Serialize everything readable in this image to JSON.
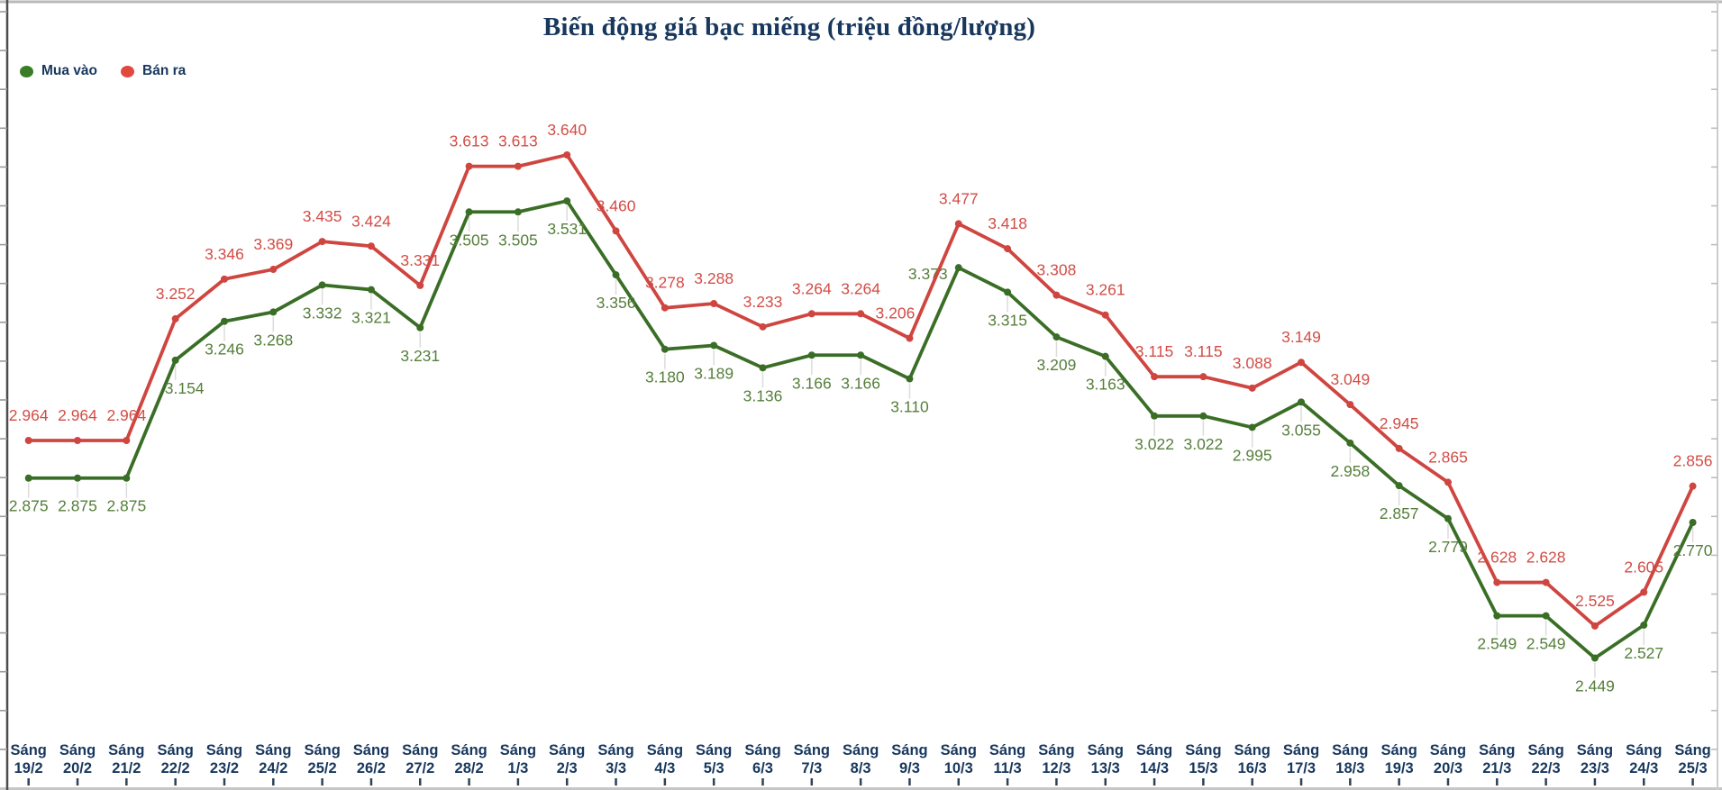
{
  "title": "Biến động giá bạc miếng (triệu đồng/lượng)",
  "legend": [
    {
      "label": "Mua vào",
      "color": "#3a7d28"
    },
    {
      "label": "Bán ra",
      "color": "#e2483e"
    }
  ],
  "chart_data": {
    "type": "line",
    "x_prefix": "Sáng",
    "categories": [
      "19/2",
      "20/2",
      "21/2",
      "22/2",
      "23/2",
      "24/2",
      "25/2",
      "26/2",
      "27/2",
      "28/2",
      "1/3",
      "2/3",
      "3/3",
      "4/3",
      "5/3",
      "6/3",
      "7/3",
      "8/3",
      "9/3",
      "10/3",
      "11/3",
      "12/3",
      "13/3",
      "14/3",
      "15/3",
      "16/3",
      "17/3",
      "18/3",
      "19/3",
      "20/3",
      "21/3",
      "22/3",
      "23/3",
      "24/3",
      "25/3"
    ],
    "series": [
      {
        "name": "Mua vào",
        "role": "buy",
        "color": "#3a6e26",
        "label_color": "#557f3a",
        "values": [
          2.875,
          2.875,
          2.875,
          3.154,
          3.246,
          3.268,
          3.332,
          3.321,
          3.231,
          3.505,
          3.505,
          3.531,
          3.356,
          3.18,
          3.189,
          3.136,
          3.166,
          3.166,
          3.11,
          3.373,
          3.315,
          3.209,
          3.163,
          3.022,
          3.022,
          2.995,
          3.055,
          2.958,
          2.857,
          2.779,
          2.549,
          2.549,
          2.449,
          2.527,
          2.77
        ]
      },
      {
        "name": "Bán ra",
        "role": "sell",
        "color": "#cf4540",
        "label_color": "#d24d46",
        "values": [
          2.964,
          2.964,
          2.964,
          3.252,
          3.346,
          3.369,
          3.435,
          3.424,
          3.331,
          3.613,
          3.613,
          3.64,
          3.46,
          3.278,
          3.288,
          3.233,
          3.264,
          3.264,
          3.206,
          3.477,
          3.418,
          3.308,
          3.261,
          3.115,
          3.115,
          3.088,
          3.149,
          3.049,
          2.945,
          2.865,
          2.628,
          2.628,
          2.525,
          2.605,
          2.856
        ]
      }
    ],
    "ylim": [
      2.4,
      3.75
    ],
    "y_axis_labels_visible": false,
    "grid": false,
    "legend_position": "top-left",
    "value_label_decimals": 3
  }
}
